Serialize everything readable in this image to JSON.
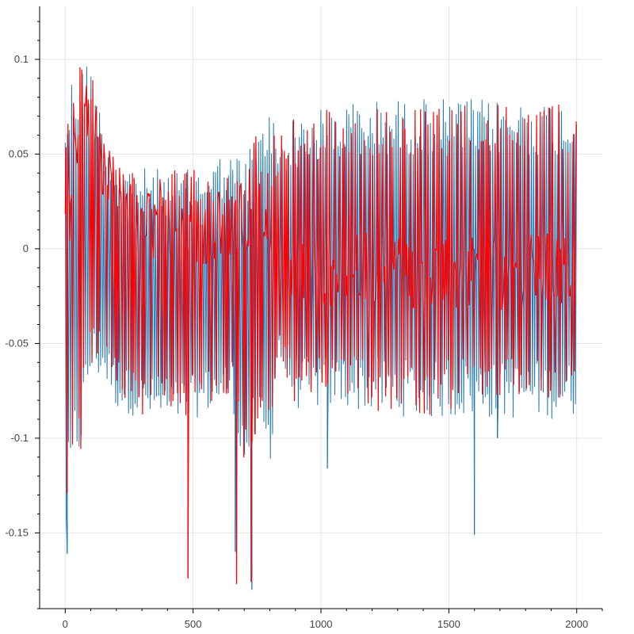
{
  "chart_data": {
    "type": "line",
    "xlim": [
      -100,
      2100
    ],
    "ylim": [
      -0.19,
      0.128
    ],
    "x_ticks": [
      0,
      500,
      1000,
      1500,
      2000
    ],
    "x_tick_labels": [
      "0",
      "500",
      "1000",
      "1500",
      "2000"
    ],
    "y_ticks": [
      -0.15,
      -0.1,
      -0.05,
      0,
      0.05,
      0.1
    ],
    "y_tick_labels": [
      "-0.15",
      "-0.1",
      "-0.05",
      "0",
      "0.05",
      "0.1"
    ],
    "grid": true,
    "series": [
      {
        "color": "#1f77b4",
        "envelope": [
          {
            "x": 0,
            "low": -0.161,
            "high": 0.085
          },
          {
            "x": 30,
            "low": -0.12,
            "high": 0.095
          },
          {
            "x": 60,
            "low": -0.11,
            "high": 0.1
          },
          {
            "x": 100,
            "low": -0.07,
            "high": 0.1
          },
          {
            "x": 150,
            "low": -0.07,
            "high": 0.065
          },
          {
            "x": 200,
            "low": -0.085,
            "high": 0.048
          },
          {
            "x": 300,
            "low": -0.09,
            "high": 0.043
          },
          {
            "x": 400,
            "low": -0.095,
            "high": 0.042
          },
          {
            "x": 500,
            "low": -0.09,
            "high": 0.042
          },
          {
            "x": 600,
            "low": -0.085,
            "high": 0.05
          },
          {
            "x": 650,
            "low": -0.08,
            "high": 0.05
          },
          {
            "x": 700,
            "low": -0.12,
            "high": 0.05
          },
          {
            "x": 760,
            "low": -0.1,
            "high": 0.065
          },
          {
            "x": 800,
            "low": -0.12,
            "high": 0.08
          },
          {
            "x": 830,
            "low": -0.06,
            "high": 0.06
          },
          {
            "x": 900,
            "low": -0.085,
            "high": 0.07
          },
          {
            "x": 1100,
            "low": -0.085,
            "high": 0.078
          },
          {
            "x": 1400,
            "low": -0.09,
            "high": 0.08
          },
          {
            "x": 1700,
            "low": -0.09,
            "high": 0.079
          },
          {
            "x": 2000,
            "low": -0.09,
            "high": 0.079
          }
        ],
        "spikes": [
          {
            "x": 8,
            "y": -0.161
          },
          {
            "x": 665,
            "y": -0.16
          },
          {
            "x": 730,
            "y": -0.18
          },
          {
            "x": 1025,
            "y": -0.116
          },
          {
            "x": 1600,
            "y": -0.151
          },
          {
            "x": 1690,
            "y": -0.1
          }
        ]
      },
      {
        "color": "#ff0000",
        "envelope": [
          {
            "x": 0,
            "low": -0.156,
            "high": 0.087
          },
          {
            "x": 30,
            "low": -0.125,
            "high": 0.097
          },
          {
            "x": 60,
            "low": -0.11,
            "high": 0.114
          },
          {
            "x": 100,
            "low": -0.065,
            "high": 0.098
          },
          {
            "x": 150,
            "low": -0.06,
            "high": 0.06
          },
          {
            "x": 200,
            "low": -0.08,
            "high": 0.045
          },
          {
            "x": 300,
            "low": -0.09,
            "high": 0.042
          },
          {
            "x": 400,
            "low": -0.09,
            "high": 0.042
          },
          {
            "x": 500,
            "low": -0.088,
            "high": 0.042
          },
          {
            "x": 600,
            "low": -0.083,
            "high": 0.048
          },
          {
            "x": 650,
            "low": -0.08,
            "high": 0.045
          },
          {
            "x": 700,
            "low": -0.115,
            "high": 0.05
          },
          {
            "x": 760,
            "low": -0.1,
            "high": 0.063
          },
          {
            "x": 800,
            "low": -0.115,
            "high": 0.062
          },
          {
            "x": 830,
            "low": -0.055,
            "high": 0.06
          },
          {
            "x": 900,
            "low": -0.082,
            "high": 0.07
          },
          {
            "x": 1100,
            "low": -0.085,
            "high": 0.077
          },
          {
            "x": 1400,
            "low": -0.088,
            "high": 0.078
          },
          {
            "x": 1700,
            "low": -0.088,
            "high": 0.078
          },
          {
            "x": 2000,
            "low": -0.088,
            "high": 0.08
          }
        ],
        "center": [
          {
            "x": 0,
            "y": 0.0
          },
          {
            "x": 60,
            "y": 0.08
          },
          {
            "x": 100,
            "y": 0.06
          },
          {
            "x": 150,
            "y": 0.04
          },
          {
            "x": 250,
            "y": 0.015
          },
          {
            "x": 400,
            "y": 0.01
          },
          {
            "x": 600,
            "y": 0.012
          },
          {
            "x": 650,
            "y": 0.01
          },
          {
            "x": 700,
            "y": 0.02
          },
          {
            "x": 800,
            "y": 0.0
          },
          {
            "x": 900,
            "y": -0.015
          },
          {
            "x": 1200,
            "y": -0.01
          },
          {
            "x": 1500,
            "y": -0.015
          },
          {
            "x": 2000,
            "y": -0.01
          }
        ],
        "spikes": [
          {
            "x": 480,
            "y": -0.174
          },
          {
            "x": 670,
            "y": -0.177
          },
          {
            "x": 727,
            "y": -0.176
          }
        ]
      }
    ]
  }
}
